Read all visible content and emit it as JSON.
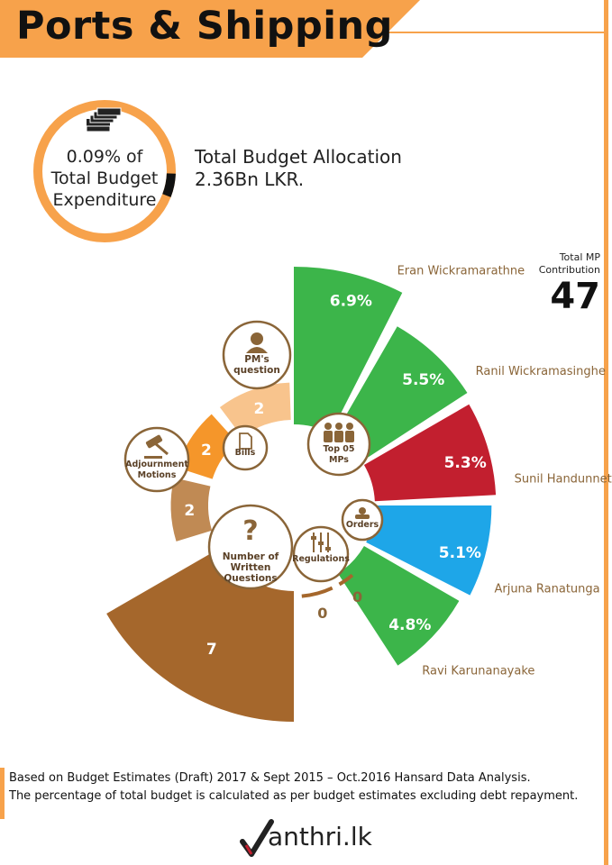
{
  "header": {
    "title": "Ports & Shipping"
  },
  "budget": {
    "ring_lines": [
      "0.09% of",
      "Total Budget",
      "Expenditure"
    ],
    "allocation_label": "Total Budget Allocation",
    "allocation_value": "2.36Bn LKR.",
    "share_percent": 0.09,
    "icon": "money-stack-icon"
  },
  "mp_total": {
    "label_lines": [
      "Total MP",
      "Contribution"
    ],
    "value": "47"
  },
  "chart_data": [
    {
      "type": "bar",
      "subtype": "radial",
      "center_label": [
        "Top 05",
        "MPs"
      ],
      "center_icon": "people-group-icon",
      "categories": [
        "Eran Wickramarathne",
        "Ranil Wickramasinghe",
        "Sunil Handunneththi",
        "Arjuna Ranatunga",
        "Ravi Karunanayake"
      ],
      "values": [
        6.9,
        5.5,
        5.3,
        5.1,
        4.8
      ],
      "value_labels": [
        "6.9%",
        "5.5%",
        "5.3%",
        "5.1%",
        "4.8%"
      ],
      "colors": [
        "#3cb54a",
        "#3cb54a",
        "#c21f2f",
        "#1ea6e8",
        "#3cb54a"
      ]
    },
    {
      "type": "bar",
      "subtype": "radial",
      "categories": [
        "Number of Written Questions",
        "Adjournment Motions",
        "Bills",
        "PM's question",
        "Orders",
        "Regulations"
      ],
      "category_lines": [
        [
          "Number of",
          "Written",
          "Questions"
        ],
        [
          "Adjournment",
          "Motions"
        ],
        [
          "Bills"
        ],
        [
          "PM's",
          "question"
        ],
        [
          "Orders"
        ],
        [
          "Regulations"
        ]
      ],
      "values": [
        7,
        2,
        2,
        2,
        0,
        0
      ],
      "colors": [
        "#a5672c",
        "#c08a54",
        "#f5962a",
        "#f8c48d",
        "#a5672c",
        "#a5672c"
      ],
      "icons": [
        "question-mark-icon",
        "gavel-icon",
        "document-icon",
        "person-icon",
        "stamp-icon",
        "sliders-icon"
      ]
    }
  ],
  "footer": {
    "line1": "Based on Budget Estimates (Draft) 2017 & Sept 2015 – Oct.2016  Hansard Data Analysis.",
    "line2": "The percentage of total budget is calculated as per budget estimates excluding debt repayment.",
    "logo_text": "anthri.lk"
  }
}
